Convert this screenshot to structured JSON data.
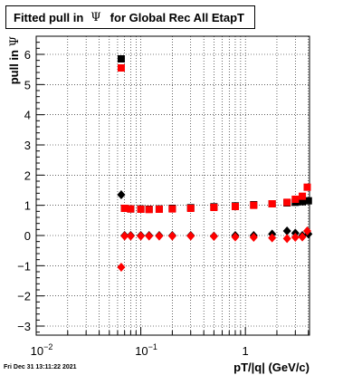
{
  "title": {
    "prefix": "Fitted pull in",
    "symbol": "Ψ",
    "suffix": "for Global Rec All EtapT"
  },
  "timestamp": "Fri Dec 31 13:11:22 2021",
  "chart_data": {
    "type": "scatter",
    "xscale": "log",
    "xlabel": "pT/|q| (GeV/c)",
    "ylabel": "pull in",
    "ylabel_symbol": "Ψ",
    "xlim": [
      0.01,
      4.1
    ],
    "ylim": [
      -3.3,
      6.6
    ],
    "x_ticks": [
      {
        "value": 0.01,
        "base": "10",
        "exp": "−2"
      },
      {
        "value": 0.1,
        "base": "10",
        "exp": "−1"
      },
      {
        "value": 1,
        "base": "1",
        "exp": ""
      }
    ],
    "y_ticks": [
      -3,
      -2,
      -1,
      0,
      1,
      2,
      3,
      4,
      5,
      6
    ],
    "grid": true,
    "colors": {
      "black": "#000000",
      "red": "#ff0000"
    },
    "series": [
      {
        "color": "#000000",
        "marker": "square",
        "x": [
          0.065,
          0.07,
          0.08,
          0.1,
          0.12,
          0.15,
          0.2,
          0.3,
          0.5,
          0.8,
          1.2,
          1.8,
          2.5,
          3.0,
          3.5,
          4.0
        ],
        "y": [
          5.85,
          0.9,
          0.88,
          0.88,
          0.87,
          0.88,
          0.9,
          0.92,
          0.95,
          0.98,
          1.02,
          1.05,
          1.08,
          1.1,
          1.12,
          1.15
        ]
      },
      {
        "color": "#ff0000",
        "marker": "square",
        "x": [
          0.065,
          0.07,
          0.08,
          0.1,
          0.12,
          0.15,
          0.2,
          0.3,
          0.5,
          0.8,
          1.2,
          1.8,
          2.5,
          3.0,
          3.5,
          3.9
        ],
        "y": [
          5.55,
          0.9,
          0.88,
          0.87,
          0.86,
          0.87,
          0.88,
          0.9,
          0.93,
          0.96,
          1.0,
          1.05,
          1.1,
          1.2,
          1.3,
          1.6
        ]
      },
      {
        "color": "#000000",
        "marker": "diamond",
        "x": [
          0.065,
          0.07,
          0.08,
          0.1,
          0.12,
          0.15,
          0.2,
          0.3,
          0.5,
          0.8,
          1.2,
          1.8,
          2.5,
          3.0,
          3.5,
          4.0
        ],
        "y": [
          1.35,
          0.0,
          0.0,
          0.0,
          0.0,
          0.0,
          0.0,
          0.0,
          -0.02,
          0.0,
          0.0,
          0.05,
          0.15,
          0.08,
          0.0,
          0.05
        ]
      },
      {
        "color": "#ff0000",
        "marker": "diamond",
        "x": [
          0.065,
          0.07,
          0.08,
          0.1,
          0.12,
          0.15,
          0.2,
          0.3,
          0.5,
          0.8,
          1.2,
          1.8,
          2.5,
          3.0,
          3.5,
          3.9
        ],
        "y": [
          -1.05,
          -0.02,
          -0.02,
          -0.02,
          -0.02,
          -0.02,
          -0.02,
          -0.02,
          -0.03,
          -0.05,
          -0.06,
          -0.08,
          -0.1,
          -0.06,
          -0.05,
          0.15
        ]
      }
    ]
  }
}
